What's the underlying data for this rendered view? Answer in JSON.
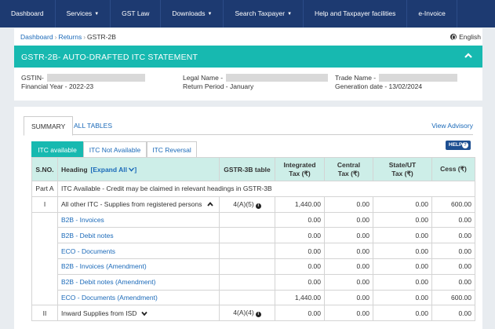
{
  "nav": {
    "items": [
      {
        "label": "Dashboard",
        "dropdown": false
      },
      {
        "label": "Services",
        "dropdown": true
      },
      {
        "label": "GST Law",
        "dropdown": false
      },
      {
        "label": "Downloads",
        "dropdown": true
      },
      {
        "label": "Search Taxpayer",
        "dropdown": true
      },
      {
        "label": "Help and Taxpayer facilities",
        "dropdown": false
      },
      {
        "label": "e-Invoice",
        "dropdown": false
      }
    ]
  },
  "breadcrumb": {
    "dashboard": "Dashboard",
    "returns": "Returns",
    "current": "GSTR-2B"
  },
  "language": "English",
  "header": {
    "title": "GSTR-2B- AUTO-DRAFTED ITC STATEMENT"
  },
  "info": {
    "gstin": "GSTIN-",
    "financial_year": "Financial Year - 2022-23",
    "legal_name": "Legal Name -",
    "return_period": "Return Period - January",
    "trade_name": "Trade Name -",
    "generation_date": "Generation date - 13/02/2024"
  },
  "tabs": {
    "summary": "SUMMARY",
    "all_tables": "ALL TABLES",
    "view_advisory": "View Advisory"
  },
  "sub_tabs": {
    "itc_available": "ITC available",
    "itc_not_available": "ITC Not Available",
    "itc_reversal": "ITC Reversal"
  },
  "help": "HELP",
  "table": {
    "headers": {
      "sno": "S.NO.",
      "heading": "Heading",
      "expand_all": "[Expand All",
      "gstr3b": "GSTR-3B table",
      "integrated": "Integrated\nTax (₹)",
      "central": "Central\nTax (₹)",
      "state": "State/UT\nTax (₹)",
      "cess": "Cess (₹)"
    },
    "part_a": {
      "sno": "Part A",
      "text": "ITC Available - Credit may be claimed in relevant headings in GSTR-3B"
    },
    "section1": {
      "sno": "I",
      "heading": "All other ITC - Supplies from registered persons",
      "table": "4(A)(5)",
      "integrated": "1,440.00",
      "central": "0.00",
      "state": "0.00",
      "cess": "600.00"
    },
    "sub_rows": [
      {
        "heading": "B2B - Invoices",
        "integrated": "0.00",
        "central": "0.00",
        "state": "0.00",
        "cess": "0.00"
      },
      {
        "heading": "B2B - Debit notes",
        "integrated": "0.00",
        "central": "0.00",
        "state": "0.00",
        "cess": "0.00"
      },
      {
        "heading": "ECO - Documents",
        "integrated": "0.00",
        "central": "0.00",
        "state": "0.00",
        "cess": "0.00"
      },
      {
        "heading": "B2B - Invoices (Amendment)",
        "integrated": "0.00",
        "central": "0.00",
        "state": "0.00",
        "cess": "0.00"
      },
      {
        "heading": "B2B - Debit notes (Amendment)",
        "integrated": "0.00",
        "central": "0.00",
        "state": "0.00",
        "cess": "0.00"
      },
      {
        "heading": "ECO - Documents (Amendment)",
        "integrated": "1,440.00",
        "central": "0.00",
        "state": "0.00",
        "cess": "600.00"
      }
    ],
    "section2": {
      "sno": "II",
      "heading": "Inward Supplies from ISD",
      "table": "4(A)(4)",
      "integrated": "0.00",
      "central": "0.00",
      "state": "0.00",
      "cess": "0.00"
    }
  }
}
